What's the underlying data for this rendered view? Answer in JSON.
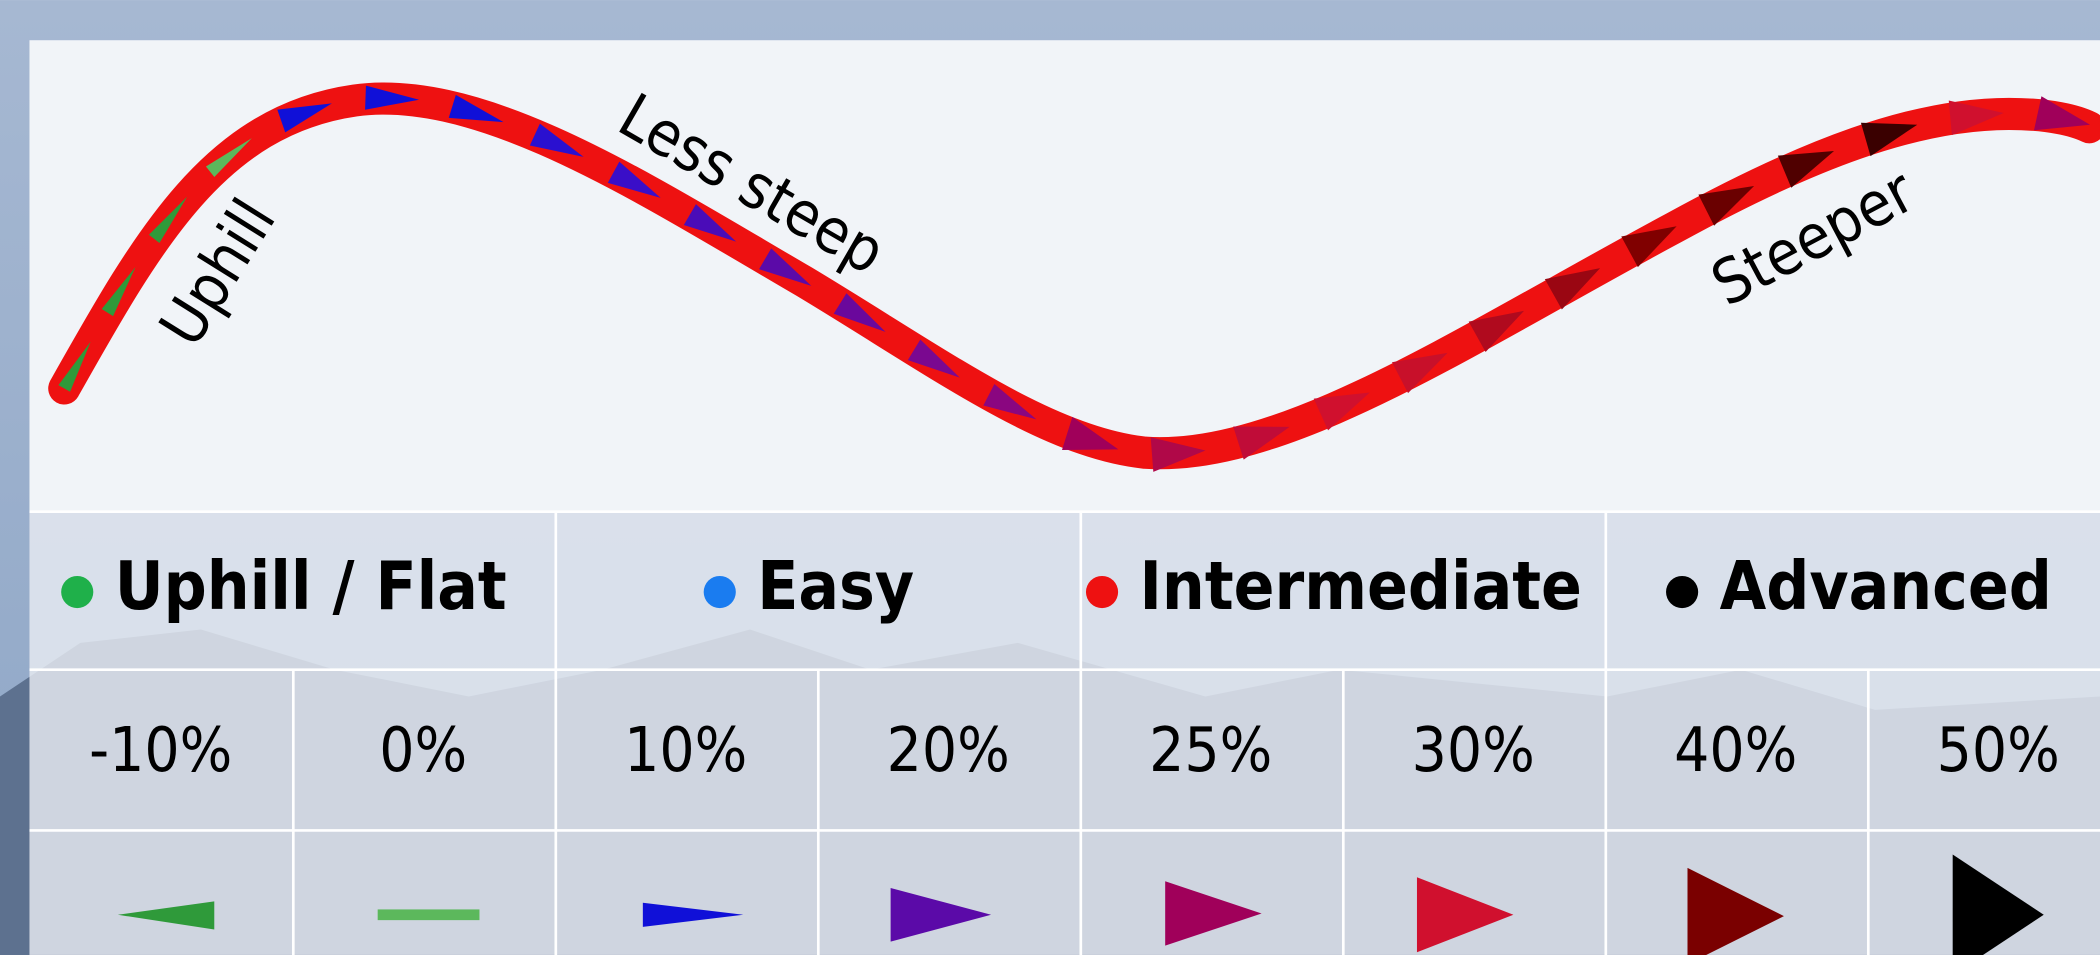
{
  "curve_labels": {
    "uphill": "Uphill",
    "less_steep": "Less steep",
    "steeper": "Steeper"
  },
  "legend": [
    {
      "label": "Uphill / Flat",
      "color": "#1fb04a"
    },
    {
      "label": "Easy",
      "color": "#1a7cf0"
    },
    {
      "label": "Intermediate",
      "color": "#ee1111"
    },
    {
      "label": "Advanced",
      "color": "#000000"
    }
  ],
  "grades": [
    "-10%",
    "0%",
    "10%",
    "20%",
    "25%",
    "30%",
    "40%",
    "50%"
  ]
}
